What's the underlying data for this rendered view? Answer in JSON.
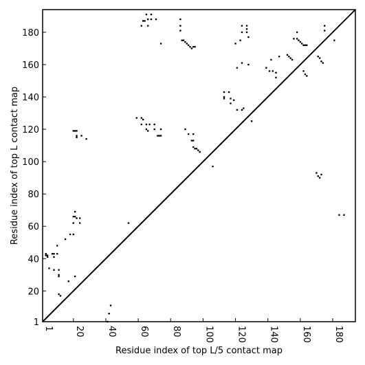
{
  "chart_data": {
    "type": "scatter",
    "title": "",
    "xlabel": "Residue index of top L/5 contact map",
    "ylabel": "Residue index of top L contact map",
    "xlim": [
      1,
      194
    ],
    "ylim": [
      1,
      194
    ],
    "x_ticks": [
      1,
      20,
      40,
      60,
      80,
      100,
      120,
      140,
      160,
      180
    ],
    "y_ticks": [
      1,
      20,
      40,
      60,
      80,
      100,
      120,
      140,
      160,
      180
    ],
    "grid": false,
    "diagonal": true,
    "marker_color": "#000000",
    "lower_triangle_points": [
      [
        41,
        1
      ],
      [
        42,
        6
      ],
      [
        43,
        11
      ],
      [
        22,
        115
      ],
      [
        28,
        114
      ]
    ],
    "upper_triangle_points": [
      [
        3,
        43
      ],
      [
        3,
        42
      ],
      [
        4,
        41
      ],
      [
        4,
        42
      ],
      [
        7,
        43
      ],
      [
        8,
        43
      ],
      [
        8,
        41
      ],
      [
        10,
        43
      ],
      [
        10,
        48
      ],
      [
        5,
        34
      ],
      [
        8,
        33
      ],
      [
        11,
        33
      ],
      [
        11,
        30
      ],
      [
        11,
        29
      ],
      [
        11,
        18
      ],
      [
        12,
        17
      ],
      [
        15,
        52
      ],
      [
        17,
        26
      ],
      [
        18,
        55
      ],
      [
        20,
        55
      ],
      [
        20,
        62
      ],
      [
        20,
        66
      ],
      [
        21,
        66
      ],
      [
        21,
        69
      ],
      [
        21,
        29
      ],
      [
        22,
        65
      ],
      [
        24,
        65
      ],
      [
        24,
        62
      ],
      [
        20,
        119
      ],
      [
        21,
        119
      ],
      [
        22,
        119
      ],
      [
        22,
        116
      ],
      [
        25,
        116
      ],
      [
        54,
        62
      ],
      [
        59,
        127
      ],
      [
        62,
        127
      ],
      [
        63,
        126
      ],
      [
        62,
        123
      ],
      [
        65,
        123
      ],
      [
        67,
        123
      ],
      [
        70,
        123
      ],
      [
        65,
        120
      ],
      [
        66,
        119
      ],
      [
        70,
        120
      ],
      [
        72,
        116
      ],
      [
        73,
        116
      ],
      [
        74,
        116
      ],
      [
        74,
        120
      ],
      [
        62,
        184
      ],
      [
        63,
        187
      ],
      [
        64,
        187
      ],
      [
        65,
        191
      ],
      [
        68,
        191
      ],
      [
        68,
        188
      ],
      [
        66,
        188
      ],
      [
        66,
        184
      ],
      [
        71,
        188
      ],
      [
        74,
        173
      ],
      [
        86,
        181
      ],
      [
        86,
        184
      ],
      [
        86,
        188
      ],
      [
        87,
        175
      ],
      [
        88,
        175
      ],
      [
        89,
        174
      ],
      [
        90,
        173
      ],
      [
        91,
        172
      ],
      [
        92,
        171
      ],
      [
        93,
        170
      ],
      [
        94,
        171
      ],
      [
        95,
        171
      ],
      [
        89,
        120
      ],
      [
        91,
        117
      ],
      [
        94,
        117
      ],
      [
        93,
        113
      ],
      [
        94,
        113
      ],
      [
        94,
        109
      ],
      [
        95,
        108
      ],
      [
        96,
        108
      ],
      [
        97,
        107
      ],
      [
        98,
        106
      ],
      [
        106,
        97
      ],
      [
        113,
        143
      ],
      [
        113,
        140
      ],
      [
        113,
        139
      ],
      [
        116,
        143
      ],
      [
        117,
        139
      ],
      [
        117,
        136
      ],
      [
        119,
        138
      ],
      [
        120,
        173
      ],
      [
        121,
        158
      ],
      [
        121,
        132
      ],
      [
        123,
        175
      ],
      [
        124,
        184
      ],
      [
        124,
        180
      ],
      [
        124,
        161
      ],
      [
        124,
        132
      ],
      [
        125,
        133
      ],
      [
        127,
        184
      ],
      [
        127,
        182
      ],
      [
        127,
        180
      ],
      [
        128,
        177
      ],
      [
        128,
        160
      ],
      [
        130,
        125
      ],
      [
        139,
        158
      ],
      [
        141,
        156
      ],
      [
        142,
        163
      ],
      [
        143,
        156
      ],
      [
        145,
        155
      ],
      [
        145,
        152
      ],
      [
        147,
        165
      ],
      [
        152,
        166
      ],
      [
        153,
        165
      ],
      [
        154,
        164
      ],
      [
        155,
        163
      ],
      [
        156,
        176
      ],
      [
        158,
        176
      ],
      [
        158,
        180
      ],
      [
        159,
        175
      ],
      [
        160,
        174
      ],
      [
        161,
        173
      ],
      [
        162,
        172
      ],
      [
        163,
        172
      ],
      [
        164,
        172
      ],
      [
        162,
        156
      ],
      [
        163,
        154
      ],
      [
        164,
        153
      ],
      [
        170,
        93
      ],
      [
        171,
        91
      ],
      [
        172,
        90
      ],
      [
        173,
        92
      ],
      [
        171,
        165
      ],
      [
        172,
        164
      ],
      [
        173,
        162
      ],
      [
        174,
        161
      ],
      [
        175,
        184
      ],
      [
        175,
        181
      ],
      [
        181,
        175
      ],
      [
        184,
        67
      ],
      [
        187,
        67
      ]
    ]
  }
}
